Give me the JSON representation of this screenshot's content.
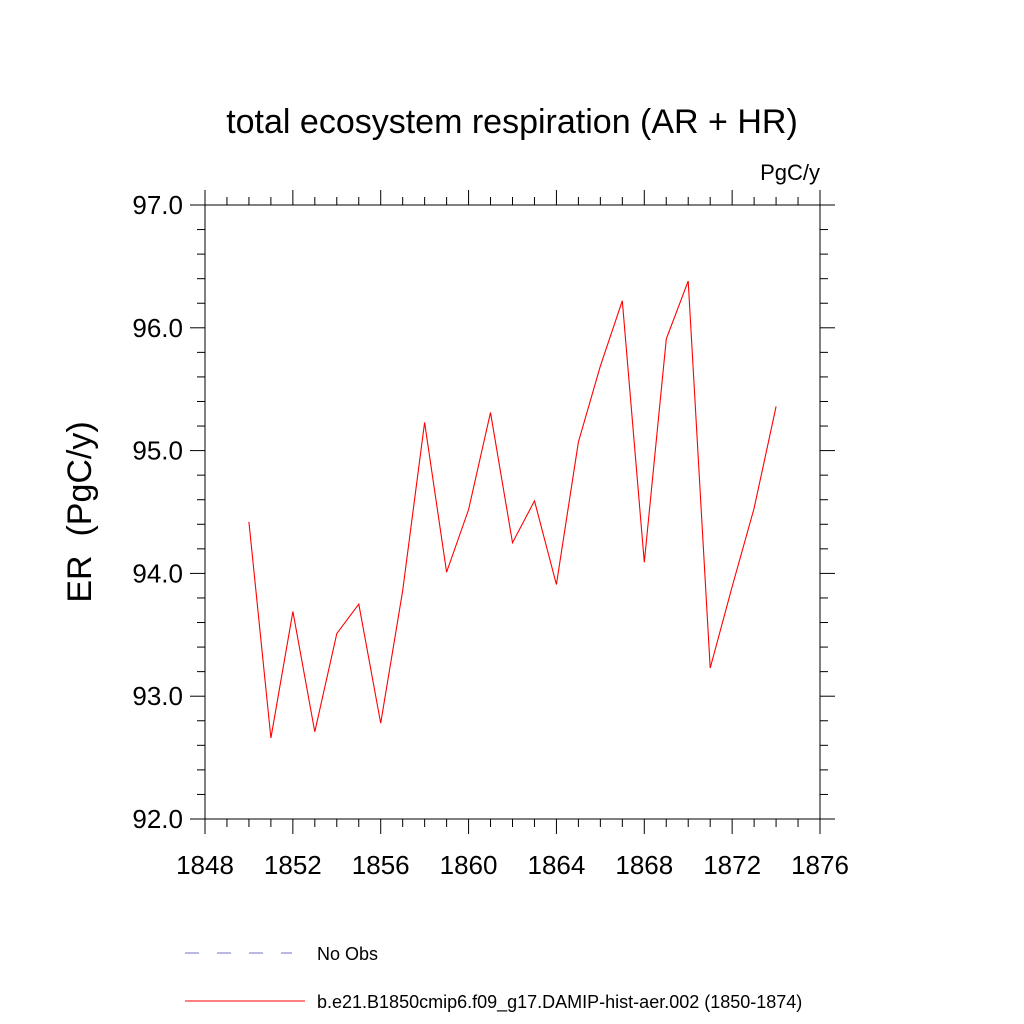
{
  "chart_data": {
    "type": "line",
    "title": "total ecosystem respiration (AR + HR)",
    "units_label": "PgC/y",
    "ylabel": "ER  (PgC/y)",
    "xlabel": "",
    "xlim": [
      1848,
      1876
    ],
    "ylim": [
      92.0,
      97.0
    ],
    "x_ticks": [
      1848,
      1852,
      1856,
      1860,
      1864,
      1868,
      1872,
      1876
    ],
    "x_tick_labels": [
      "1848",
      "1852",
      "1856",
      "1860",
      "1864",
      "1868",
      "1872",
      "1876"
    ],
    "y_ticks": [
      92.0,
      93.0,
      94.0,
      95.0,
      96.0,
      97.0
    ],
    "y_tick_labels": [
      "92.0",
      "93.0",
      "94.0",
      "95.0",
      "96.0",
      "97.0"
    ],
    "grid": false,
    "legend_position": "bottom",
    "series": [
      {
        "name": "b.e21.B1850cmip6.f09_g17.DAMIP-hist-aer.002 (1850-1874)",
        "color": "#ff0000",
        "style": "solid",
        "x": [
          1850,
          1851,
          1852,
          1853,
          1854,
          1855,
          1856,
          1857,
          1858,
          1859,
          1860,
          1861,
          1862,
          1863,
          1864,
          1865,
          1866,
          1867,
          1868,
          1869,
          1870,
          1871,
          1872,
          1873,
          1874
        ],
        "values": [
          94.42,
          92.66,
          93.69,
          92.71,
          93.51,
          93.75,
          92.78,
          93.86,
          95.23,
          94.01,
          94.52,
          95.31,
          94.25,
          94.59,
          93.91,
          95.07,
          95.69,
          96.22,
          94.09,
          95.91,
          96.38,
          93.23,
          93.89,
          94.53,
          95.36
        ]
      }
    ],
    "legend": [
      {
        "label": "No Obs",
        "color": "#7070cc",
        "style": "dashed"
      },
      {
        "label": "b.e21.B1850cmip6.f09_g17.DAMIP-hist-aer.002 (1850-1874)",
        "color": "#ff0000",
        "style": "solid"
      }
    ]
  }
}
